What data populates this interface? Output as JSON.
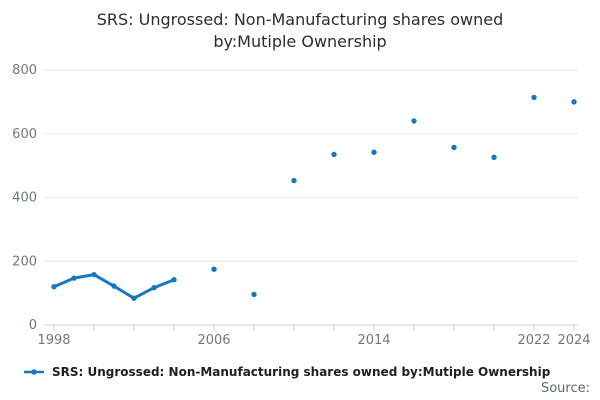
{
  "header": {
    "title_line1": "SRS: Ungrossed: Non-Manufacturing shares owned",
    "title_line2": "by:Mutiple Ownership"
  },
  "colors": {
    "series_blue": "#1878bf",
    "grid_line": "#e7e7e7",
    "axis_line": "#c9d3e0",
    "tick_label": "#6e7882",
    "title_text": "#2d2d2d",
    "legend_text": "#1f1f1f",
    "source_text": "#5c6873"
  },
  "chart_data": {
    "type": "line",
    "title": "SRS: Ungrossed: Non-Manufacturing shares owned by:Mutiple Ownership",
    "xlabel": "",
    "ylabel": "",
    "ylim": [
      0,
      800
    ],
    "y_ticks": [
      0,
      200,
      400,
      600,
      800
    ],
    "x_ticks": [
      1998,
      2000,
      2002,
      2004,
      2006,
      2008,
      2010,
      2012,
      2014,
      2016,
      2018,
      2020,
      2022,
      2024
    ],
    "x_tick_labels": [
      {
        "value": 1998,
        "label": "1998"
      },
      {
        "value": 2006,
        "label": "2006"
      },
      {
        "value": 2014,
        "label": "2014"
      },
      {
        "value": 2022,
        "label": "2022"
      },
      {
        "value": 2024,
        "label": "2024"
      }
    ],
    "grid": "horizontal",
    "legend_position": "bottom-left",
    "series": [
      {
        "name": "SRS: Ungrossed: Non-Manufacturing shares owned by:Mutiple Ownership",
        "points": [
          [
            1998,
            120
          ],
          [
            1999,
            147
          ],
          [
            2000,
            158
          ],
          [
            2001,
            122
          ],
          [
            2002,
            84
          ],
          [
            2003,
            117
          ],
          [
            2004,
            142
          ],
          [
            2006,
            175
          ],
          [
            2008,
            96
          ],
          [
            2010,
            453
          ],
          [
            2012,
            535
          ],
          [
            2014,
            542
          ],
          [
            2016,
            640
          ],
          [
            2018,
            557
          ],
          [
            2020,
            526
          ],
          [
            2022,
            714
          ],
          [
            2024,
            700
          ]
        ],
        "note": "points at 1-year spacing are connected by a line; 2-year-spaced points are isolated markers"
      }
    ]
  },
  "legend": {
    "label": "SRS: Ungrossed: Non-Manufacturing shares owned by:Mutiple Ownership"
  },
  "footer": {
    "source_label": "Source:"
  }
}
